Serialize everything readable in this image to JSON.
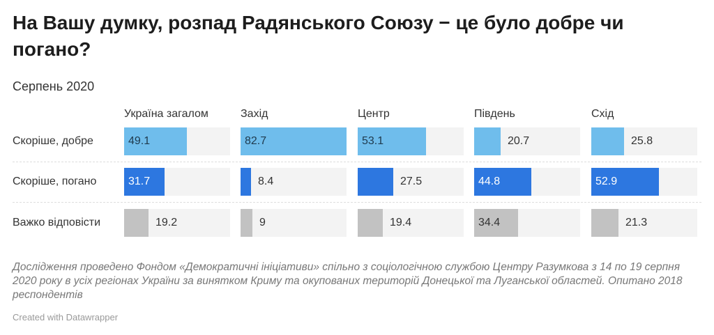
{
  "title": "На Вашу думку, розпад Радянського Союзу − це було добре чи погано?",
  "subtitle": "Серпень 2020",
  "notes": "Дослідження проведено Фондом «Демократичні ініціативи» спільно з соціологічною службою Центру Разумкова з 14 по 19 серпня 2020 року в усіх регіонах України за винятком Криму та окупованих територій Донецької та Луганської областей. Опитано 2018 респондентів",
  "credit": "Created with Datawrapper",
  "chart_data": {
    "type": "bar",
    "columns": [
      "Україна загалом",
      "Захід",
      "Центр",
      "Південь",
      "Схід"
    ],
    "categories": [
      "Скоріше, добре",
      "Скоріше, погано",
      "Важко відповісти"
    ],
    "colors": [
      "#6fbdec",
      "#2d77e0",
      "#c2c2c2"
    ],
    "values": [
      [
        49.1,
        82.7,
        53.1,
        20.7,
        25.8
      ],
      [
        31.7,
        8.4,
        27.5,
        44.8,
        52.9
      ],
      [
        19.2,
        9,
        19.4,
        34.4,
        21.3
      ]
    ],
    "xlim": [
      0,
      82.7
    ]
  }
}
